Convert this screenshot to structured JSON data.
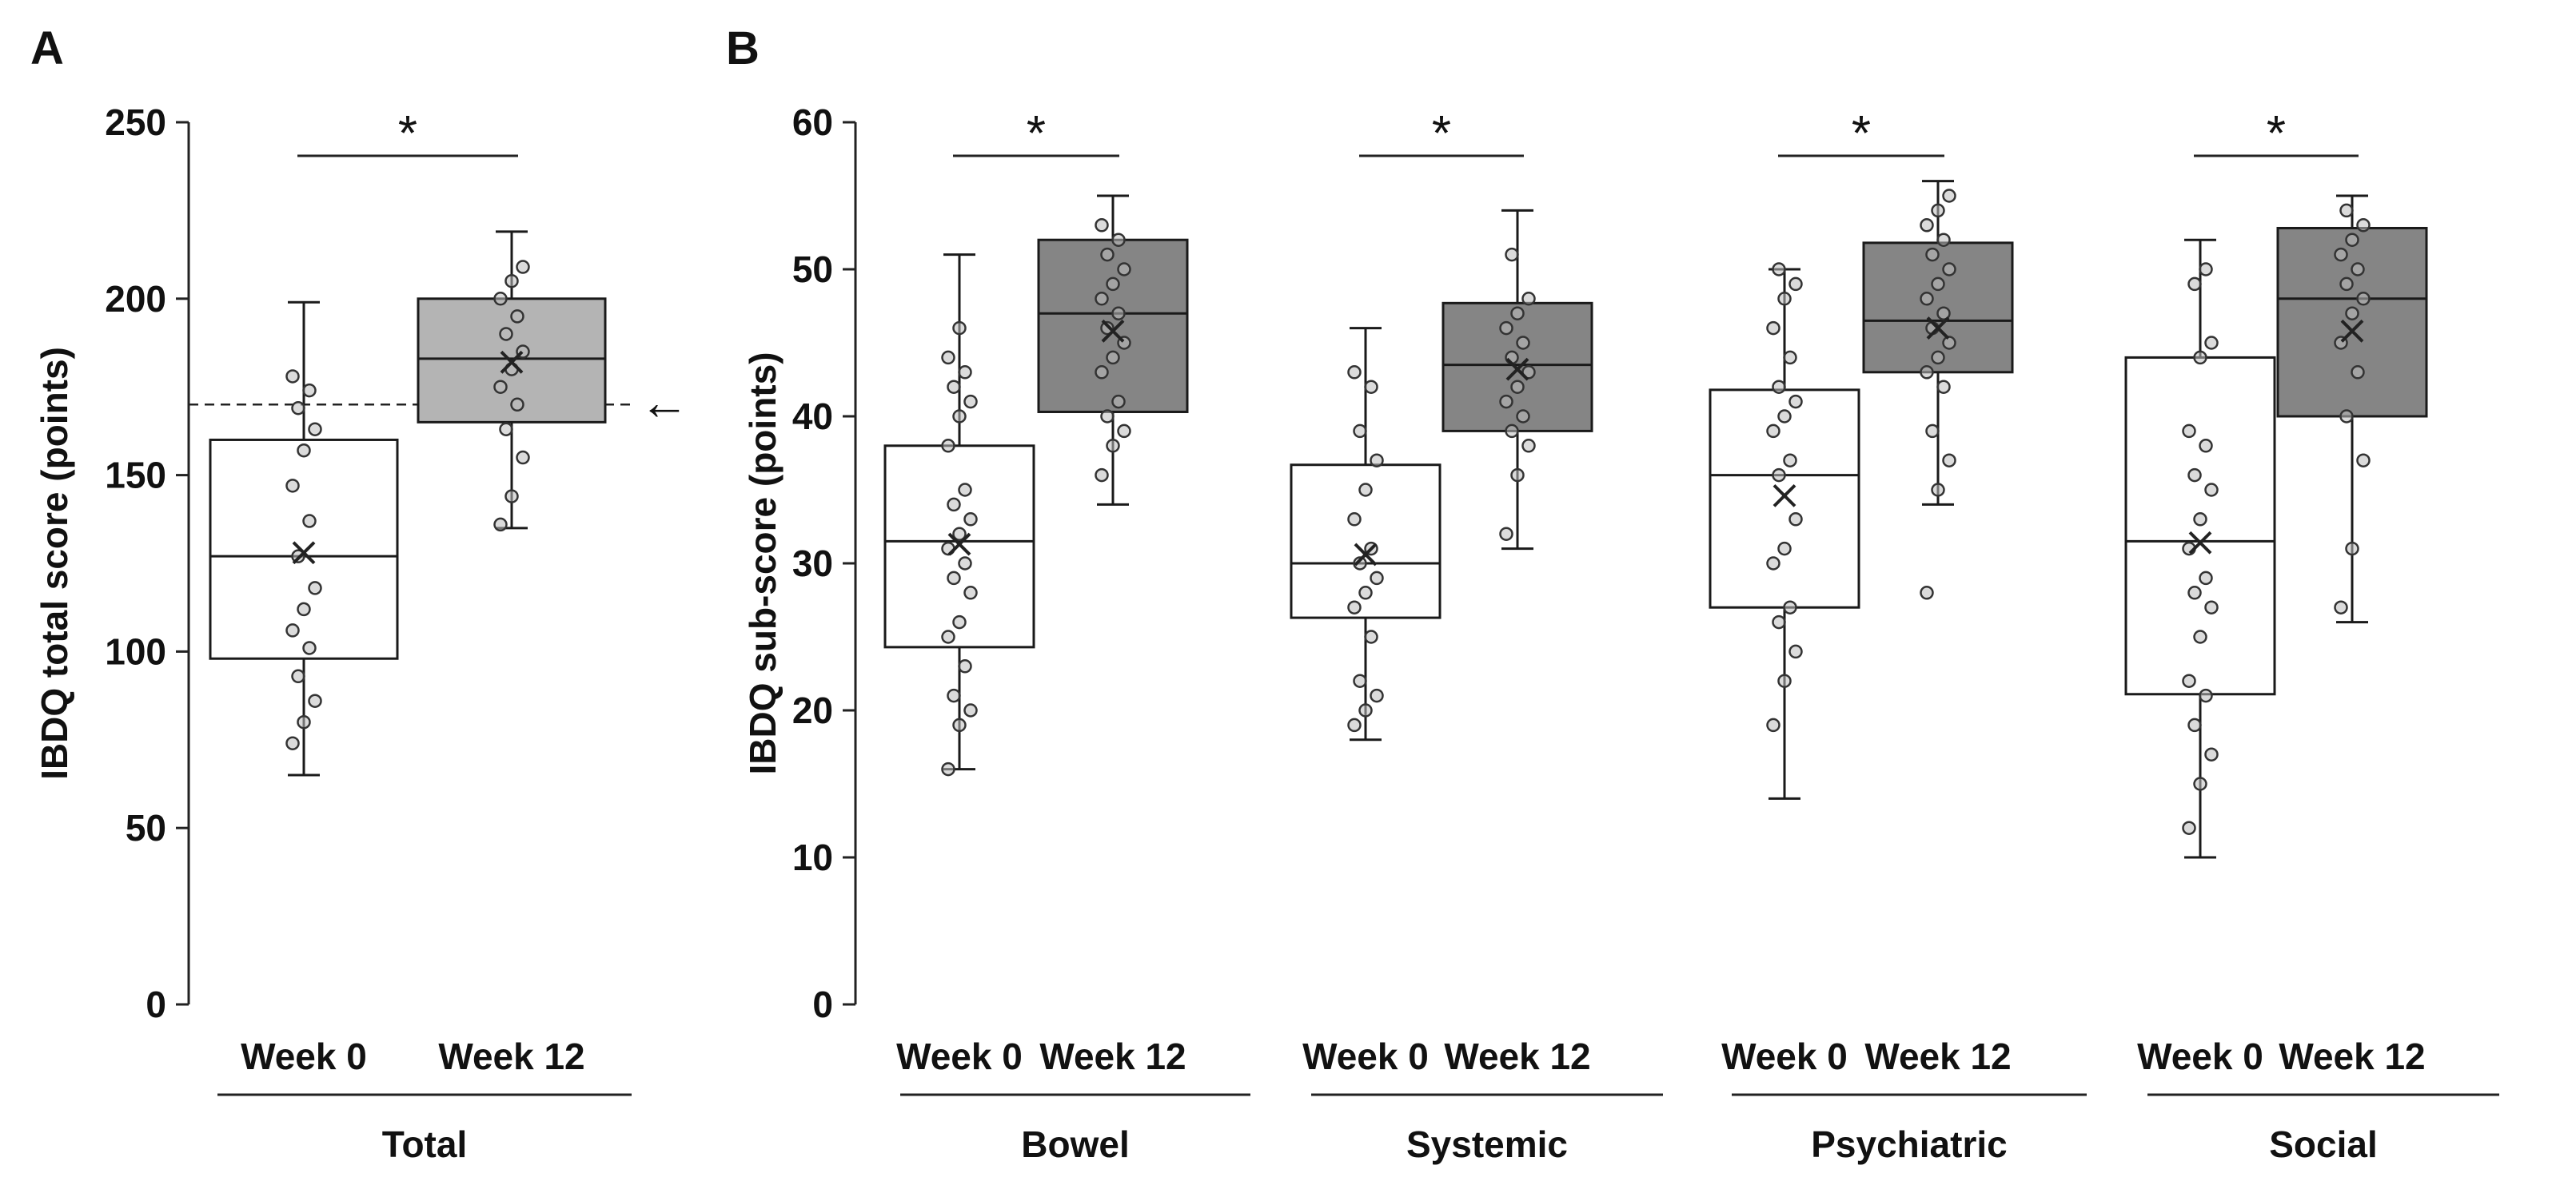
{
  "colors": {
    "week0_fill": "#ffffff",
    "week12_fill_total": "#b4b4b4",
    "week12_fill_sub": "#858585",
    "outline": "#1a1a1a",
    "point_fill": "#bdbdbd"
  },
  "chart_data": [
    {
      "type": "box",
      "panel_label": "A",
      "ylabel": "IBDQ total score (points)",
      "ylim": [
        0,
        250
      ],
      "yticks": [
        0,
        50,
        100,
        150,
        200,
        250
      ],
      "reference_line": {
        "y": 170,
        "style": "dashed",
        "marker": "←"
      },
      "groups": [
        {
          "name": "Total",
          "categories": [
            "Week 0",
            "Week 12"
          ],
          "significance": "*",
          "boxes": [
            {
              "category": "Week 0",
              "min": 65,
              "q1": 98,
              "median": 127,
              "q3": 160,
              "max": 199,
              "mean": 128,
              "points": [
                74,
                80,
                86,
                93,
                101,
                106,
                112,
                118,
                127,
                137,
                147,
                157,
                163,
                169,
                174,
                178
              ]
            },
            {
              "category": "Week 12",
              "min": 135,
              "q1": 165,
              "median": 183,
              "q3": 200,
              "max": 219,
              "mean": 182,
              "points": [
                136,
                144,
                155,
                163,
                170,
                175,
                180,
                185,
                190,
                195,
                200,
                205,
                209
              ]
            }
          ]
        }
      ]
    },
    {
      "type": "box",
      "panel_label": "B",
      "ylabel": "IBDQ sub-score (points)",
      "ylim": [
        0,
        60
      ],
      "yticks": [
        0,
        10,
        20,
        30,
        40,
        50,
        60
      ],
      "groups": [
        {
          "name": "Bowel",
          "categories": [
            "Week 0",
            "Week 12"
          ],
          "significance": "*",
          "boxes": [
            {
              "category": "Week 0",
              "min": 16,
              "q1": 24.3,
              "median": 31.5,
              "q3": 38,
              "max": 51,
              "mean": 31.3,
              "points": [
                16,
                19,
                20,
                21,
                23,
                25,
                26,
                28,
                29,
                30,
                31,
                32,
                33,
                34,
                35,
                38,
                40,
                41,
                42,
                43,
                44,
                46
              ]
            },
            {
              "category": "Week 12",
              "min": 34,
              "q1": 40.3,
              "median": 47,
              "q3": 52,
              "max": 55,
              "mean": 45.8,
              "points": [
                36,
                38,
                39,
                40,
                41,
                43,
                44,
                45,
                46,
                47,
                48,
                49,
                50,
                51,
                52,
                53
              ]
            }
          ]
        },
        {
          "name": "Systemic",
          "categories": [
            "Week 0",
            "Week 12"
          ],
          "significance": "*",
          "boxes": [
            {
              "category": "Week 0",
              "min": 18,
              "q1": 26.3,
              "median": 30,
              "q3": 36.7,
              "max": 46,
              "mean": 30.6,
              "points": [
                19,
                20,
                21,
                22,
                25,
                27,
                28,
                29,
                30,
                31,
                33,
                35,
                37,
                39,
                42,
                43
              ]
            },
            {
              "category": "Week 12",
              "min": 31,
              "q1": 39,
              "median": 43.5,
              "q3": 47.7,
              "max": 54,
              "mean": 43.2,
              "points": [
                32,
                36,
                38,
                39,
                40,
                41,
                42,
                43,
                44,
                45,
                46,
                47,
                48,
                51
              ]
            }
          ]
        },
        {
          "name": "Psychiatric",
          "categories": [
            "Week 0",
            "Week 12"
          ],
          "significance": "*",
          "boxes": [
            {
              "category": "Week 0",
              "min": 14,
              "q1": 27,
              "median": 36,
              "q3": 41.8,
              "max": 50,
              "mean": 34.6,
              "points": [
                19,
                22,
                24,
                26,
                27,
                30,
                31,
                33,
                36,
                37,
                39,
                40,
                41,
                42,
                44,
                46,
                48,
                49,
                50
              ]
            },
            {
              "category": "Week 12",
              "min": 34,
              "q1": 43,
              "median": 46.5,
              "q3": 51.8,
              "max": 56,
              "mean": 46,
              "points": [
                28,
                35,
                37,
                39,
                42,
                43,
                44,
                45,
                46,
                47,
                48,
                49,
                50,
                51,
                52,
                53,
                54,
                55
              ]
            }
          ]
        },
        {
          "name": "Social",
          "categories": [
            "Week 0",
            "Week 12"
          ],
          "significance": "*",
          "boxes": [
            {
              "category": "Week 0",
              "min": 10,
              "q1": 21.1,
              "median": 31.5,
              "q3": 44,
              "max": 52,
              "mean": 31.4,
              "points": [
                12,
                15,
                17,
                19,
                21,
                22,
                25,
                27,
                28,
                29,
                31,
                33,
                35,
                36,
                38,
                39,
                44,
                45,
                49,
                50
              ]
            },
            {
              "category": "Week 12",
              "min": 26,
              "q1": 40,
              "median": 48,
              "q3": 52.8,
              "max": 55,
              "mean": 45.8,
              "points": [
                27,
                31,
                37,
                40,
                43,
                45,
                47,
                48,
                49,
                50,
                51,
                52,
                53,
                54
              ]
            }
          ]
        }
      ]
    }
  ]
}
